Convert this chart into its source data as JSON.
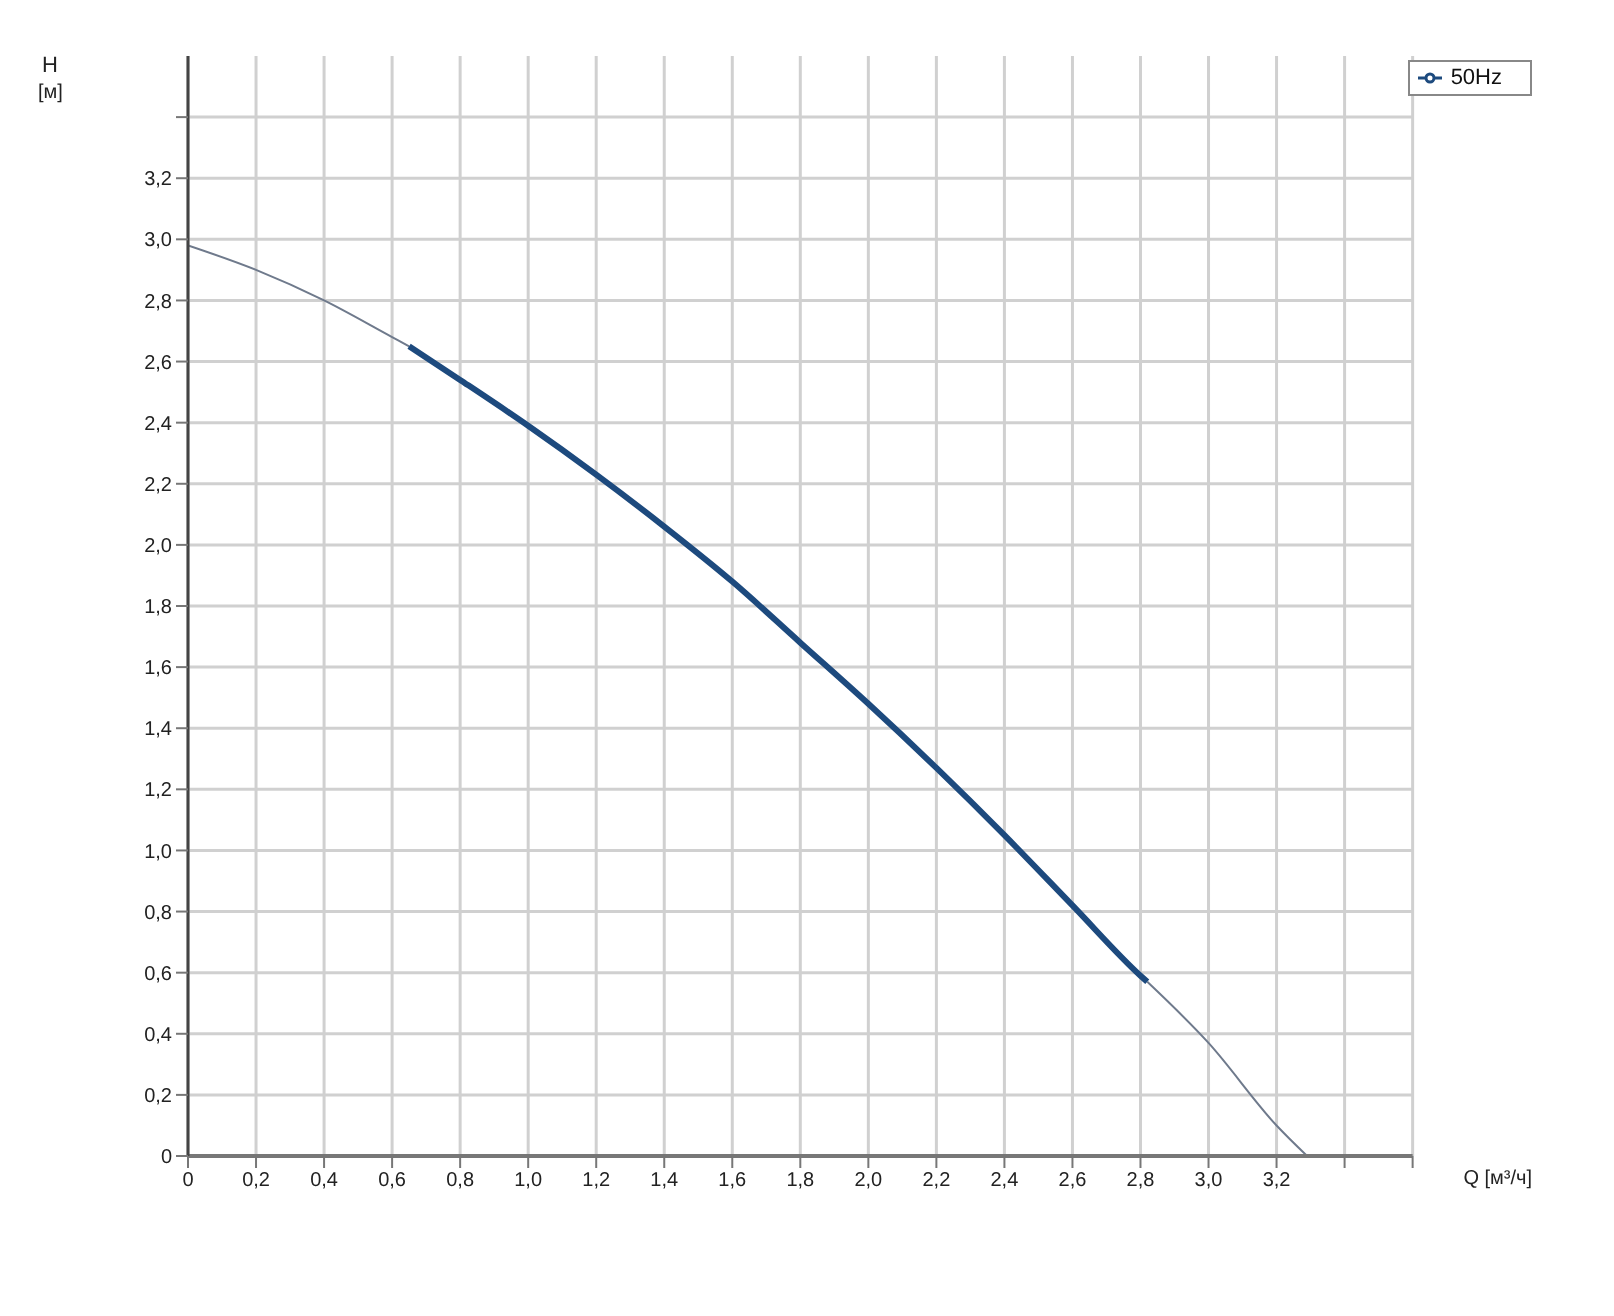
{
  "chart_data": {
    "type": "line",
    "xlabel": "Q [м³/ч]",
    "ylabel": "H [м]",
    "xlim": [
      0,
      3.6
    ],
    "ylim": [
      0,
      3.6
    ],
    "xticks": [
      0,
      {
        "value": 0.2,
        "label": "0,2"
      },
      {
        "value": 0.4,
        "label": "0,4"
      },
      {
        "value": 0.6,
        "label": "0,6"
      },
      {
        "value": 0.8,
        "label": "0,8"
      },
      {
        "value": 1,
        "label": "1,0"
      },
      {
        "value": 1.2,
        "label": "1,2"
      },
      {
        "value": 1.4,
        "label": "1,4"
      },
      {
        "value": 1.6,
        "label": "1,6"
      },
      {
        "value": 1.8,
        "label": "1,8"
      },
      {
        "value": 2,
        "label": "2,0"
      },
      {
        "value": 2.2,
        "label": "2,2"
      },
      {
        "value": 2.4,
        "label": "2,4"
      },
      {
        "value": 2.6,
        "label": "2,6"
      },
      {
        "value": 2.8,
        "label": "2,8"
      },
      {
        "value": 3,
        "label": "3,0"
      },
      {
        "value": 3.2,
        "label": "3,2"
      },
      {
        "value": 3.4,
        "label": null
      },
      {
        "value": 3.6,
        "label": null
      }
    ],
    "yticks": [
      0,
      {
        "value": 0.2,
        "label": "0,2"
      },
      {
        "value": 0.4,
        "label": "0,4"
      },
      {
        "value": 0.6,
        "label": "0,6"
      },
      {
        "value": 0.8,
        "label": "0,8"
      },
      {
        "value": 1,
        "label": "1,0"
      },
      {
        "value": 1.2,
        "label": "1,2"
      },
      {
        "value": 1.4,
        "label": "1,4"
      },
      {
        "value": 1.6,
        "label": "1,6"
      },
      {
        "value": 1.8,
        "label": "1,8"
      },
      {
        "value": 2,
        "label": "2,0"
      },
      {
        "value": 2.2,
        "label": "2,2"
      },
      {
        "value": 2.4,
        "label": "2,4"
      },
      {
        "value": 2.6,
        "label": "2,6"
      },
      {
        "value": 2.8,
        "label": "2,8"
      },
      {
        "value": 3,
        "label": "3,0"
      },
      {
        "value": 3.2,
        "label": "3,2"
      },
      {
        "value": 3.4,
        "label": null
      }
    ],
    "grid": true,
    "legend": "top right",
    "marker": "none",
    "series": [
      {
        "color": "#6f7a8c",
        "x": [
          0,
          0.2,
          0.4,
          0.6,
          0.65,
          0.8,
          1,
          1.2,
          1.4,
          1.6,
          1.8,
          2,
          2.2,
          2.4,
          2.6,
          2.8,
          2.82,
          3,
          3.2,
          3.29
        ],
        "values": [
          2.98,
          2.9,
          2.8,
          2.68,
          2.65,
          null,
          null,
          null,
          null,
          null,
          null,
          null,
          null,
          null,
          null,
          null,
          0.57,
          0.37,
          0.1,
          0
        ]
      },
      {
        "name": "50Hz",
        "color": "#1d4a7e",
        "x": [
          0.65,
          0.8,
          1,
          1.2,
          1.4,
          1.6,
          1.8,
          2,
          2.2,
          2.4,
          2.6,
          2.8,
          2.82
        ],
        "values": [
          2.65,
          2.54,
          2.39,
          2.23,
          2.06,
          1.88,
          1.68,
          1.48,
          1.27,
          1.05,
          0.82,
          0.59,
          0.57
        ]
      }
    ]
  }
}
